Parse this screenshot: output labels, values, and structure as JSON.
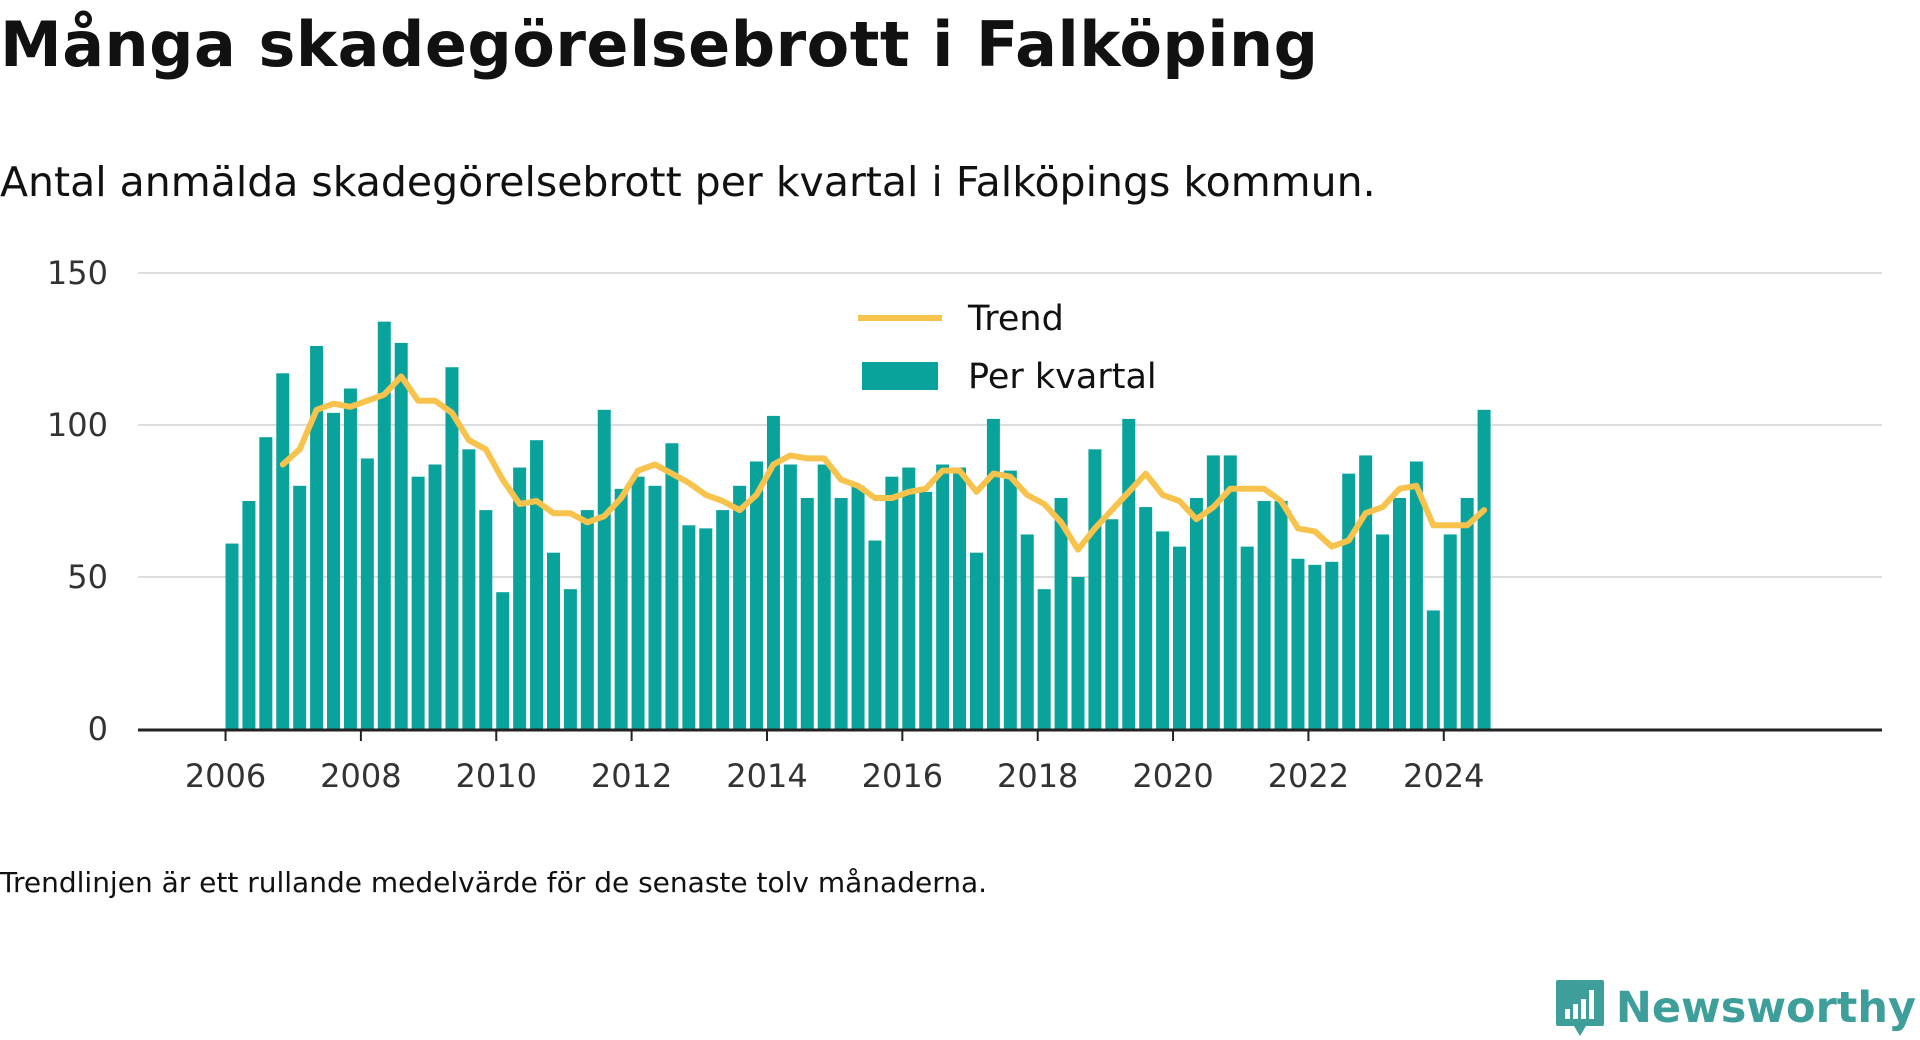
{
  "title": "Många skadegörelsebrott i Falköping",
  "subtitle": "Antal anmälda skadegörelsebrott per kvartal i Falköpings kommun.",
  "footnote": "Trendlinjen är ett rullande medelvärde för de senaste tolv månaderna.",
  "brand": {
    "name": "Newsworthy",
    "icon": "newsworthy-logo-icon",
    "color": "#3d9e9a"
  },
  "colors": {
    "bars": "#0aa39b",
    "trend": "#f8c34d",
    "grid": "#dddddd",
    "axis": "#222222"
  },
  "chart_data": {
    "type": "bar",
    "title": "Många skadegörelsebrott i Falköping",
    "subtitle": "Antal anmälda skadegörelsebrott per kvartal i Falköpings kommun.",
    "xlabel": "",
    "ylabel": "",
    "ylim": [
      0,
      150
    ],
    "yticks": [
      0,
      50,
      100,
      150
    ],
    "xticks": [
      "2006",
      "2008",
      "2010",
      "2012",
      "2014",
      "2016",
      "2018",
      "2020",
      "2022",
      "2024"
    ],
    "grid": true,
    "legend_position": "top-center",
    "categories": [
      "2006 Q1",
      "2006 Q2",
      "2006 Q3",
      "2006 Q4",
      "2007 Q1",
      "2007 Q2",
      "2007 Q3",
      "2007 Q4",
      "2008 Q1",
      "2008 Q2",
      "2008 Q3",
      "2008 Q4",
      "2009 Q1",
      "2009 Q2",
      "2009 Q3",
      "2009 Q4",
      "2010 Q1",
      "2010 Q2",
      "2010 Q3",
      "2010 Q4",
      "2011 Q1",
      "2011 Q2",
      "2011 Q3",
      "2011 Q4",
      "2012 Q1",
      "2012 Q2",
      "2012 Q3",
      "2012 Q4",
      "2013 Q1",
      "2013 Q2",
      "2013 Q3",
      "2013 Q4",
      "2014 Q1",
      "2014 Q2",
      "2014 Q3",
      "2014 Q4",
      "2015 Q1",
      "2015 Q2",
      "2015 Q3",
      "2015 Q4",
      "2016 Q1",
      "2016 Q2",
      "2016 Q3",
      "2016 Q4",
      "2017 Q1",
      "2017 Q2",
      "2017 Q3",
      "2017 Q4",
      "2018 Q1",
      "2018 Q2",
      "2018 Q3",
      "2018 Q4",
      "2019 Q1",
      "2019 Q2",
      "2019 Q3",
      "2019 Q4",
      "2020 Q1",
      "2020 Q2",
      "2020 Q3",
      "2020 Q4",
      "2021 Q1",
      "2021 Q2",
      "2021 Q3",
      "2021 Q4",
      "2022 Q1",
      "2022 Q2",
      "2022 Q3",
      "2022 Q4",
      "2023 Q1",
      "2023 Q2",
      "2023 Q3",
      "2023 Q4",
      "2024 Q1",
      "2024 Q2",
      "2024 Q3"
    ],
    "series": [
      {
        "name": "Per kvartal",
        "type": "bar",
        "values": [
          61,
          75,
          96,
          117,
          80,
          126,
          104,
          112,
          89,
          134,
          127,
          83,
          87,
          119,
          92,
          72,
          45,
          86,
          95,
          58,
          46,
          72,
          105,
          79,
          83,
          80,
          94,
          67,
          66,
          72,
          80,
          88,
          103,
          87,
          76,
          87,
          76,
          80,
          62,
          83,
          86,
          78,
          87,
          86,
          58,
          102,
          85,
          64,
          46,
          76,
          50,
          92,
          69,
          102,
          73,
          65,
          60,
          76,
          90,
          90,
          60,
          75,
          75,
          56,
          54,
          55,
          84,
          90,
          64,
          76,
          88,
          39,
          64,
          76,
          105
        ]
      },
      {
        "name": "Trend",
        "type": "line",
        "values": [
          null,
          null,
          null,
          87,
          92,
          105,
          107,
          106,
          108,
          110,
          116,
          108,
          108,
          104,
          95,
          92,
          82,
          74,
          75,
          71,
          71,
          68,
          70,
          76,
          85,
          87,
          84,
          81,
          77,
          75,
          72,
          77,
          87,
          90,
          89,
          89,
          82,
          80,
          76,
          76,
          78,
          79,
          85,
          85,
          78,
          84,
          83,
          77,
          74,
          68,
          59,
          66,
          72,
          78,
          84,
          77,
          75,
          69,
          73,
          79,
          79,
          79,
          75,
          66,
          65,
          60,
          62,
          71,
          73,
          79,
          80,
          67,
          67,
          67,
          72
        ]
      }
    ]
  }
}
